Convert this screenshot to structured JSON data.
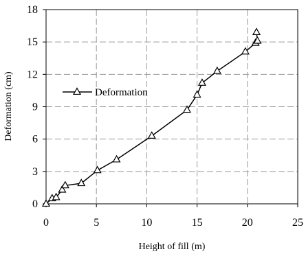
{
  "chart_data": {
    "type": "line",
    "title": "",
    "xlabel": "Height of fill (m)",
    "ylabel": "Deformation (cm)",
    "xlim": [
      0,
      25
    ],
    "ylim": [
      0,
      18
    ],
    "xticks": [
      0,
      5,
      10,
      15,
      20,
      25
    ],
    "yticks": [
      0,
      3,
      6,
      9,
      12,
      15,
      18
    ],
    "grid": true,
    "legend_position": "center-left",
    "series": [
      {
        "name": "Deformation",
        "marker": "triangle",
        "color": "#000000",
        "x": [
          0,
          0.6,
          1.0,
          1.6,
          1.9,
          3.5,
          5.1,
          7.0,
          10.5,
          14.0,
          15.0,
          15.5,
          17.0,
          19.8,
          20.8,
          21.0,
          20.9
        ],
        "y": [
          0,
          0.5,
          0.6,
          1.3,
          1.7,
          1.9,
          3.1,
          4.1,
          6.3,
          8.7,
          10.1,
          11.2,
          12.3,
          14.1,
          14.9,
          15.1,
          15.9
        ]
      }
    ]
  }
}
